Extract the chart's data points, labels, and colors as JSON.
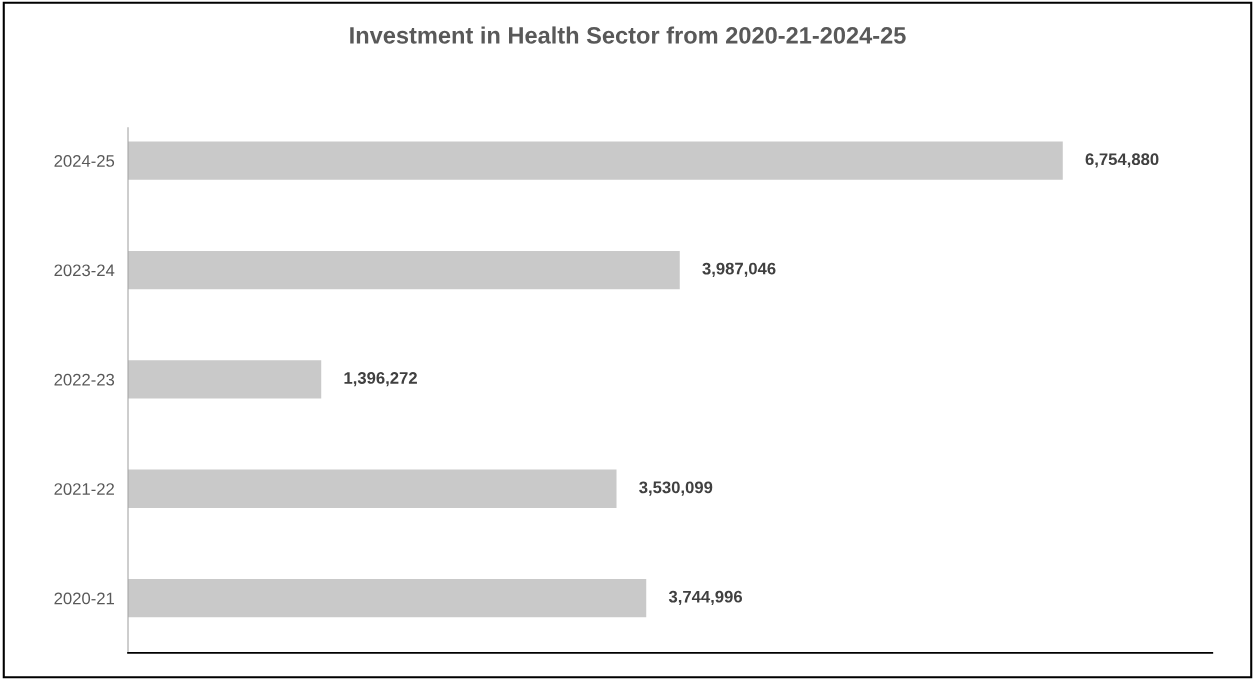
{
  "chart_data": {
    "type": "bar",
    "orientation": "horizontal",
    "title": "Investment in Health Sector from 2020-21-2024-25",
    "categories": [
      "2024-25",
      "2023-24",
      "2022-23",
      "2021-22",
      "2020-21"
    ],
    "values": [
      6754880,
      3987046,
      1396272,
      3530099,
      3744996
    ],
    "value_labels": [
      "6,754,880",
      "3,987,046",
      "1,396,272",
      "3,530,099",
      "3,744,996"
    ],
    "color": "#c9c9c9",
    "grid": false,
    "legend": false,
    "tick_labels": "y"
  }
}
